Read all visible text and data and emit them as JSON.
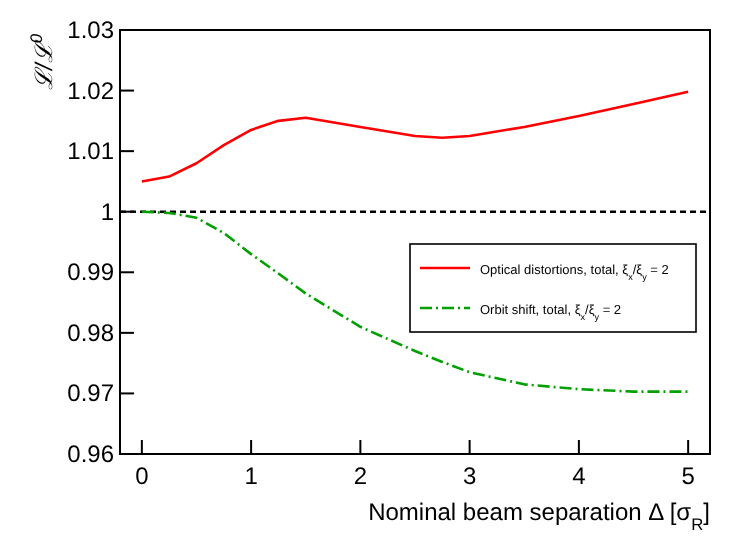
{
  "chart_data": {
    "type": "line",
    "xlabel": "Nominal beam separation Δ [σ$_{R}$]",
    "ylabel": "ℒ/ℒ$^{0}$",
    "x": [
      0,
      0.25,
      0.5,
      0.75,
      1,
      1.25,
      1.5,
      2,
      2.5,
      2.75,
      3,
      3.5,
      4,
      4.5,
      5
    ],
    "series": [
      {
        "name": "Optical distortions, total, ξ$_{x}$/ξ$_{y}$ = 2",
        "color": "#ff0000",
        "line_style": "solid",
        "values": [
          1.005,
          1.0058,
          1.008,
          1.011,
          1.0135,
          1.015,
          1.0155,
          1.014,
          1.0125,
          1.0122,
          1.0125,
          1.014,
          1.0158,
          1.0178,
          1.0198
        ]
      },
      {
        "name": "Orbit shift, total, ξ$_{x}$/ξ$_{y}$ = 2",
        "color": "#00a000",
        "line_style": "dashed",
        "values": [
          1.0,
          0.9998,
          0.999,
          0.9965,
          0.993,
          0.9898,
          0.9865,
          0.981,
          0.977,
          0.9752,
          0.9735,
          0.9715,
          0.9707,
          0.9703,
          0.9703
        ]
      }
    ],
    "xlim": [
      -0.2,
      5.2
    ],
    "ylim": [
      0.96,
      1.03
    ],
    "xticks": [
      0,
      1,
      2,
      3,
      4,
      5
    ],
    "yticks": [
      0.96,
      0.97,
      0.98,
      0.99,
      1,
      1.01,
      1.02,
      1.03
    ],
    "ref_lines": [
      {
        "axis": "y",
        "value": 1,
        "color": "#000000",
        "line_style": "dashed"
      }
    ],
    "legend": "right",
    "grid": false
  }
}
